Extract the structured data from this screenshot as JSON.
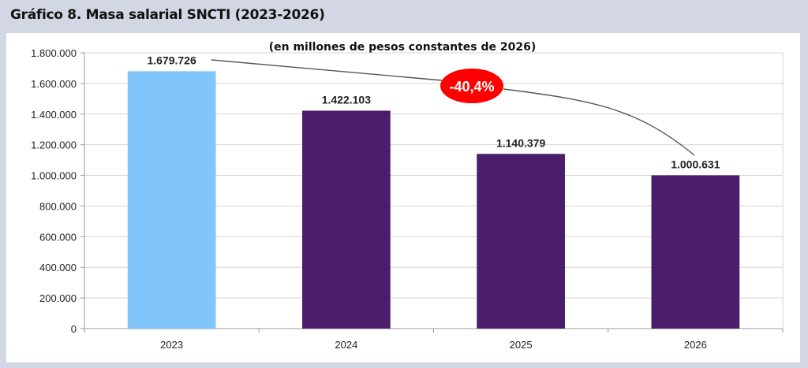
{
  "title": "Gráfico 8. Masa salarial SNCTI (2023-2026)",
  "chart_data": {
    "type": "bar",
    "title": "Gráfico 8. Masa salarial SNCTI (2023-2026)",
    "subtitle": "(en millones de pesos constantes de 2026)",
    "categories": [
      "2023",
      "2024",
      "2025",
      "2026"
    ],
    "values": [
      1679726,
      1422103,
      1140379,
      1000631
    ],
    "value_labels": [
      "1.679.726",
      "1.422.103",
      "1.140.379",
      "1.000.631"
    ],
    "colors": [
      "#80c6fa",
      "#4a1e6b",
      "#4a1e6b",
      "#4a1e6b"
    ],
    "ylim": [
      0,
      1800000
    ],
    "yticks": [
      0,
      200000,
      400000,
      600000,
      800000,
      1000000,
      1200000,
      1400000,
      1600000,
      1800000
    ],
    "ytick_labels": [
      "0",
      "200.000",
      "400.000",
      "600.000",
      "800.000",
      "1.000.000",
      "1.200.000",
      "1.400.000",
      "1.600.000",
      "1.800.000"
    ],
    "grid": true,
    "xlabel": "",
    "ylabel": "",
    "annotation": {
      "text": "-40,4%",
      "color": "#ff0000"
    }
  }
}
